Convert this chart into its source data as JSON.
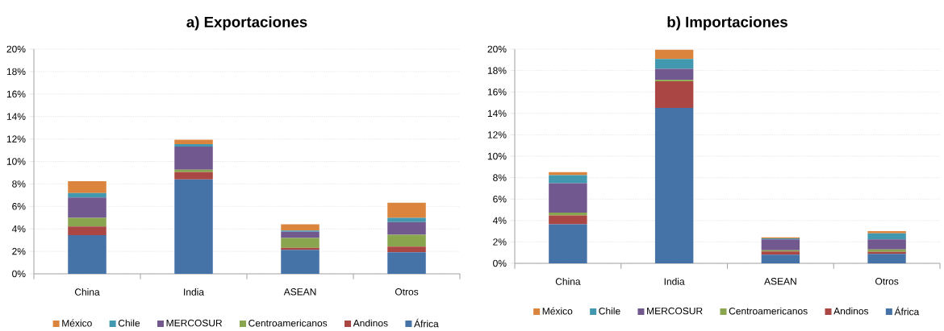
{
  "chart_data": [
    {
      "type": "bar",
      "title": "a) Exportaciones",
      "stacked": true,
      "categories": [
        "China",
        "India",
        "ASEAN",
        "Otros"
      ],
      "series": [
        {
          "name": "África",
          "color": "#4572a7",
          "values": [
            3.45,
            8.41,
            2.13,
            1.92
          ]
        },
        {
          "name": "Andinos",
          "color": "#aa4643",
          "values": [
            0.77,
            0.64,
            0.19,
            0.5
          ]
        },
        {
          "name": "Centroamericanos",
          "color": "#89a54e",
          "values": [
            0.76,
            0.22,
            0.87,
            1.05
          ]
        },
        {
          "name": "MERCOSUR",
          "color": "#71588f",
          "values": [
            1.82,
            2.06,
            0.55,
            1.13
          ]
        },
        {
          "name": "Chile",
          "color": "#4198af",
          "values": [
            0.39,
            0.21,
            0.12,
            0.38
          ]
        },
        {
          "name": "México",
          "color": "#db843d",
          "values": [
            1.05,
            0.39,
            0.55,
            1.34
          ]
        }
      ],
      "ylim": [
        0,
        20
      ],
      "yticks": [
        {
          "value": 0,
          "label": "0%"
        },
        {
          "value": 2,
          "label": "2%"
        },
        {
          "value": 4,
          "label": "4%"
        },
        {
          "value": 6,
          "label": "6%"
        },
        {
          "value": 8,
          "label": "8%"
        },
        {
          "value": 10,
          "label": "10%"
        },
        {
          "value": 12,
          "label": "12%"
        },
        {
          "value": 14,
          "label": "14%"
        },
        {
          "value": 16,
          "label": "16%"
        },
        {
          "value": 18,
          "label": "18%"
        },
        {
          "value": 20,
          "label": "20%"
        }
      ],
      "grid": "y",
      "legend": "bottom"
    },
    {
      "type": "bar",
      "title": "b) Importaciones",
      "stacked": true,
      "categories": [
        "China",
        "India",
        "ASEAN",
        "Otros"
      ],
      "series": [
        {
          "name": "África",
          "color": "#4572a7",
          "values": [
            3.65,
            14.52,
            0.8,
            0.88
          ]
        },
        {
          "name": "Andinos",
          "color": "#aa4643",
          "values": [
            0.83,
            2.48,
            0.3,
            0.2
          ]
        },
        {
          "name": "Centroamericanos",
          "color": "#89a54e",
          "values": [
            0.25,
            0.12,
            0.13,
            0.22
          ]
        },
        {
          "name": "MERCOSUR",
          "color": "#71588f",
          "values": [
            2.75,
            1.03,
            1.0,
            0.93
          ]
        },
        {
          "name": "Chile",
          "color": "#4198af",
          "values": [
            0.76,
            0.92,
            0.1,
            0.57
          ]
        },
        {
          "name": "México",
          "color": "#db843d",
          "values": [
            0.27,
            0.88,
            0.1,
            0.2
          ]
        }
      ],
      "ylim": [
        0,
        20
      ],
      "yticks": [
        {
          "value": 0,
          "label": "0%"
        },
        {
          "value": 2,
          "label": "2%"
        },
        {
          "value": 4,
          "label": "4%"
        },
        {
          "value": 6,
          "label": "6%"
        },
        {
          "value": 8,
          "label": "8%"
        },
        {
          "value": 10,
          "label": "10%"
        },
        {
          "value": 12,
          "label": "12%"
        },
        {
          "value": 14,
          "label": "14%"
        },
        {
          "value": 16,
          "label": "16%"
        },
        {
          "value": 18,
          "label": "18%"
        },
        {
          "value": 20,
          "label": "20%"
        }
      ],
      "grid": "y",
      "legend": "bottom"
    }
  ]
}
